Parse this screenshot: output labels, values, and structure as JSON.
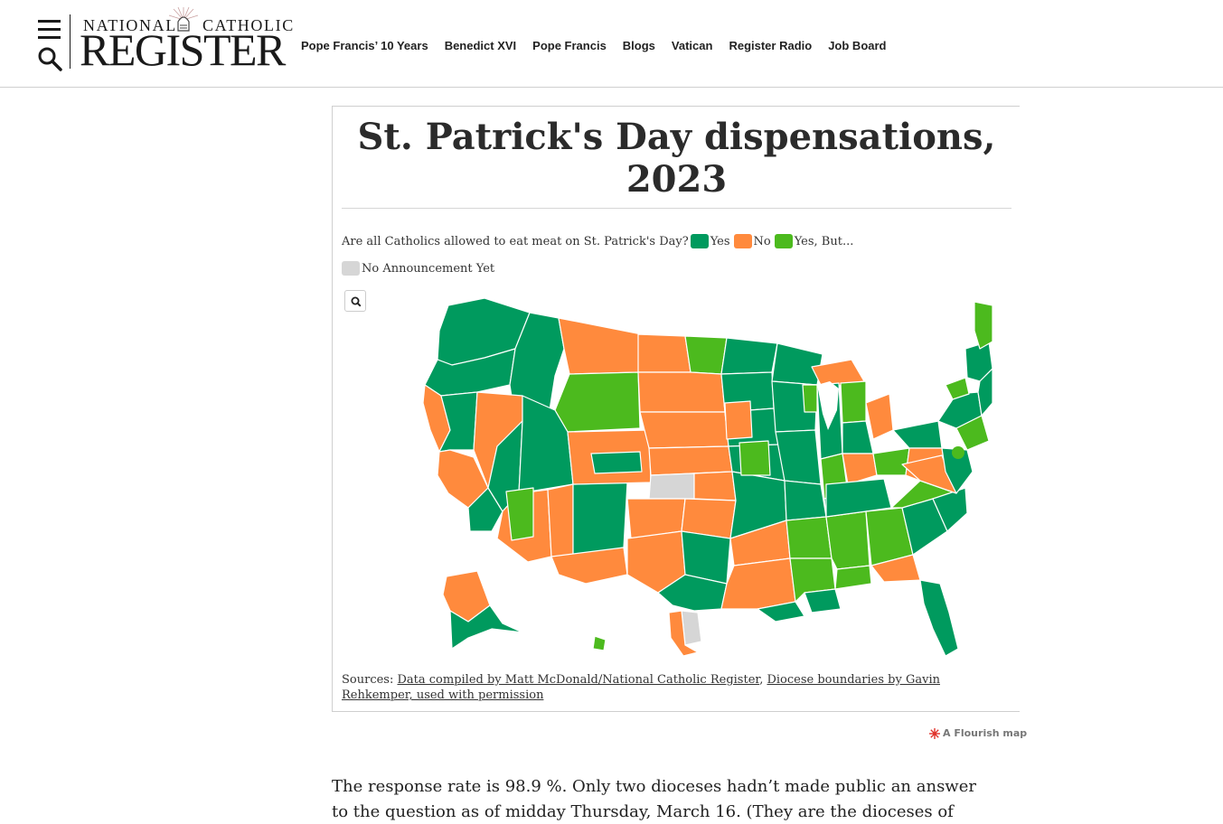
{
  "header": {
    "logo_top_left": "NATIONAL",
    "logo_top_right": "CATHOLIC",
    "logo_main": "REGISTER",
    "nav": [
      {
        "label": "Pope Francis’ 10 Years"
      },
      {
        "label": "Benedict XVI"
      },
      {
        "label": "Pope Francis"
      },
      {
        "label": "Blogs"
      },
      {
        "label": "Vatican"
      },
      {
        "label": "Register Radio"
      },
      {
        "label": "Job Board"
      }
    ]
  },
  "map": {
    "title_line1": "St. Patrick's Day dispensations,",
    "title_line2": "2023",
    "legend_question": "Are all Catholics allowed to eat meat on St. Patrick's Day?",
    "legend": [
      {
        "label": "Yes",
        "color": "#009a5e"
      },
      {
        "label": "No",
        "color": "#ff8a3d"
      },
      {
        "label": "Yes, But...",
        "color": "#4cba1e"
      },
      {
        "label": "No Announcement Yet",
        "color": "#d6d6d6"
      }
    ],
    "sources_prefix": "Sources: ",
    "source_link_1": "Data compiled by Matt McDonald/National Catholic Register",
    "source_sep": ", ",
    "source_link_2": "Diocese boundaries by Gavin Rehkemper, used with permission",
    "credit": "A Flourish map"
  },
  "article": {
    "paragraph": "The response rate is 98.9 %. Only two dioceses hadn’t made public an answer to the question as of midday Thursday, March 16. (They are the dioceses of Corpus Christi in"
  }
}
